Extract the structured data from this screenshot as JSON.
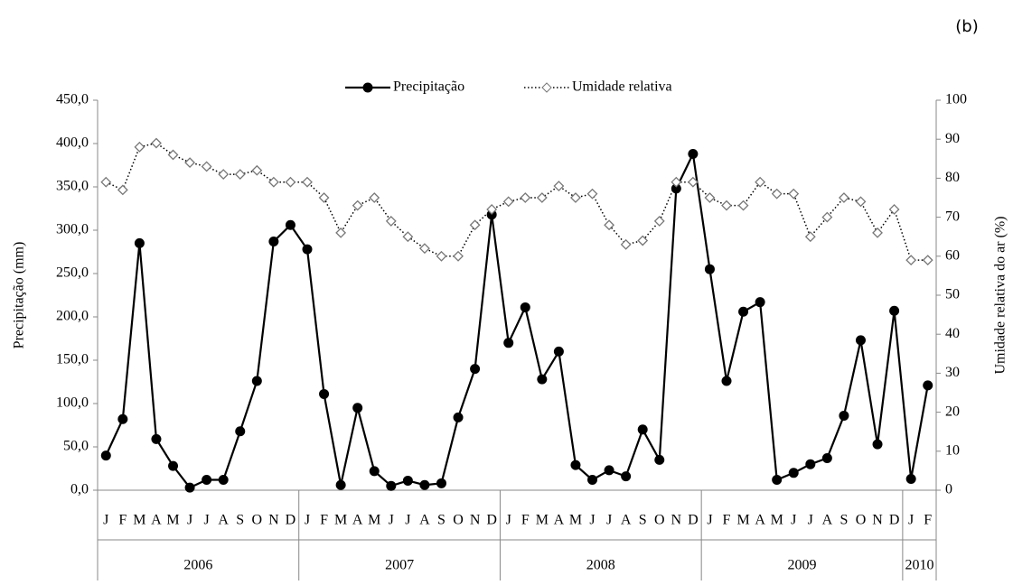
{
  "chart_data": {
    "type": "line",
    "panel_label": "(b)",
    "y_label": "Precipitação (mm)",
    "y2_label": "Umidade relativa do ar (%)",
    "categories": [
      "J",
      "F",
      "M",
      "A",
      "M",
      "J",
      "J",
      "A",
      "S",
      "O",
      "N",
      "D",
      "J",
      "F",
      "M",
      "A",
      "M",
      "J",
      "J",
      "A",
      "S",
      "O",
      "N",
      "D",
      "J",
      "F",
      "M",
      "A",
      "M",
      "J",
      "J",
      "A",
      "S",
      "O",
      "N",
      "D",
      "J",
      "F",
      "M",
      "A",
      "M",
      "J",
      "J",
      "A",
      "S",
      "O",
      "N",
      "D",
      "J",
      "F"
    ],
    "category_groups": [
      {
        "label": "2006",
        "size": 12
      },
      {
        "label": "2007",
        "size": 12
      },
      {
        "label": "2008",
        "size": 12
      },
      {
        "label": "2009",
        "size": 12
      },
      {
        "label": "2010",
        "size": 2
      }
    ],
    "series": [
      {
        "name": "Precipitação",
        "color": "#000000",
        "marker": "circle",
        "line": "solid",
        "values": [
          40,
          82,
          285,
          59,
          28,
          3,
          12,
          12,
          68,
          126,
          287,
          306,
          278,
          111,
          6,
          95,
          22,
          5,
          11,
          6,
          8,
          84,
          140,
          318,
          170,
          211,
          128,
          160,
          29,
          12,
          23,
          16,
          70,
          35,
          348,
          388,
          255,
          126,
          206,
          217,
          12,
          20,
          30,
          37,
          86,
          173,
          53,
          207,
          13,
          121
        ]
      },
      {
        "name": "Umidade relativa",
        "color": "#000000",
        "marker": "diamond",
        "line": "dotted",
        "axis": "y2",
        "values": [
          79,
          77,
          88,
          89,
          86,
          84,
          83,
          81,
          81,
          82,
          79,
          79,
          79,
          75,
          66,
          73,
          75,
          69,
          65,
          62,
          60,
          60,
          68,
          72,
          74,
          75,
          75,
          78,
          75,
          76,
          68,
          63,
          64,
          69,
          79,
          79,
          75,
          73,
          73,
          79,
          76,
          76,
          65,
          70,
          75,
          74,
          66,
          72,
          59,
          59
        ]
      }
    ],
    "ylim": [
      0,
      450
    ],
    "yticks": [
      {
        "value": 0,
        "label": "0,0"
      },
      {
        "value": 50,
        "label": "50,0"
      },
      {
        "value": 100,
        "label": "100,0"
      },
      {
        "value": 150,
        "label": "150,0"
      },
      {
        "value": 200,
        "label": "200,0"
      },
      {
        "value": 250,
        "label": "250,0"
      },
      {
        "value": 300,
        "label": "300,0"
      },
      {
        "value": 350,
        "label": "350,0"
      },
      {
        "value": 400,
        "label": "400,0"
      },
      {
        "value": 450,
        "label": "450,0"
      }
    ],
    "y2lim": [
      0,
      100
    ],
    "y2ticks": [
      0,
      10,
      20,
      30,
      40,
      50,
      60,
      70,
      80,
      90,
      100
    ],
    "legend": "top"
  }
}
